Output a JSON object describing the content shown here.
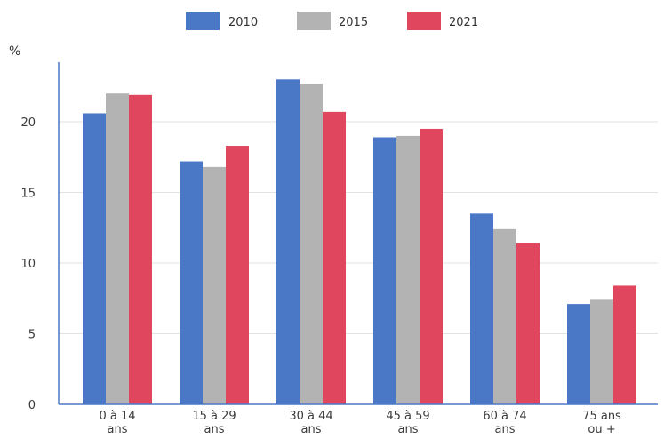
{
  "chart_data": {
    "type": "bar",
    "ylabel": "%",
    "ylim": [
      0,
      25
    ],
    "yticks": [
      "0",
      "5",
      "10",
      "15",
      "20"
    ],
    "grid": true,
    "legend_position": "top",
    "categories": [
      [
        "0 à 14",
        "ans"
      ],
      [
        "15 à 29",
        "ans"
      ],
      [
        "30 à 44",
        "ans"
      ],
      [
        "45 à 59",
        "ans"
      ],
      [
        "60 à 74",
        "ans"
      ],
      [
        "75 ans",
        "ou +"
      ]
    ],
    "series": [
      {
        "name": "2010",
        "color": "#4a78c6",
        "values": [
          20.6,
          17.2,
          23.0,
          18.9,
          13.5,
          7.1
        ]
      },
      {
        "name": "2015",
        "color": "#b3b3b3",
        "values": [
          22.0,
          16.8,
          22.7,
          19.0,
          12.4,
          7.4
        ]
      },
      {
        "name": "2021",
        "color": "#e0475f",
        "values": [
          21.9,
          18.3,
          20.7,
          19.5,
          11.4,
          8.4
        ]
      }
    ]
  }
}
